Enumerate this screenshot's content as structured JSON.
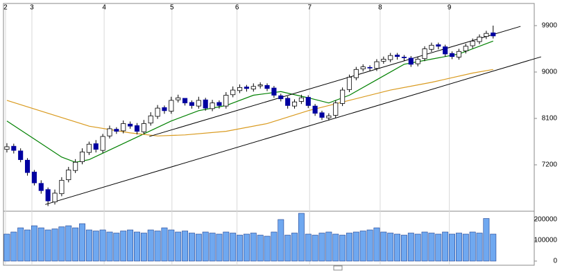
{
  "chart_data": {
    "type": "candlestick",
    "xlim": [
      -0.5,
      77
    ],
    "xticks": [
      {
        "value": -0.2,
        "label": "2"
      },
      {
        "value": 3.65,
        "label": "3"
      },
      {
        "value": 14.2,
        "label": "4"
      },
      {
        "value": 24.1,
        "label": "5"
      },
      {
        "value": 33.6,
        "label": "6"
      },
      {
        "value": 44.2,
        "label": "7"
      },
      {
        "value": 54.5,
        "label": "8"
      },
      {
        "value": 64.6,
        "label": "9"
      }
    ],
    "x_grid": true,
    "ylim": [
      6300,
      10330
    ],
    "yticks": [
      7200,
      8100,
      9000,
      9900
    ],
    "up_color": "#ffffff",
    "down_color": "#0000a0",
    "open": [
      7500,
      7560,
      7470,
      7290,
      7060,
      6840,
      6720,
      6480,
      6640,
      6910,
      7090,
      7260,
      7440,
      7610,
      7480,
      7760,
      7890,
      7860,
      7990,
      7960,
      7840,
      8010,
      8140,
      8310,
      8240,
      8460,
      8490,
      8410,
      8340,
      8460,
      8290,
      8410,
      8340,
      8560,
      8640,
      8710,
      8670,
      8730,
      8740,
      8690,
      8540,
      8490,
      8340,
      8430,
      8510,
      8340,
      8210,
      8110,
      8160,
      8390,
      8660,
      8890,
      9060,
      9090,
      9070,
      9210,
      9240,
      9330,
      9290,
      9270,
      9160,
      9260,
      9440,
      9530,
      9490,
      9360,
      9290,
      9410,
      9510,
      9590,
      9690,
      9760
    ],
    "high": [
      7620,
      7610,
      7520,
      7330,
      7100,
      6900,
      6760,
      6720,
      6960,
      7160,
      7310,
      7520,
      7650,
      7680,
      7800,
      7960,
      7930,
      8060,
      8040,
      8010,
      8070,
      8220,
      8360,
      8350,
      8520,
      8560,
      8470,
      8450,
      8520,
      8500,
      8460,
      8450,
      8610,
      8720,
      8760,
      8750,
      8780,
      8800,
      8780,
      8730,
      8580,
      8530,
      8470,
      8560,
      8550,
      8380,
      8250,
      8200,
      8450,
      8700,
      8950,
      9100,
      9150,
      9130,
      9250,
      9300,
      9370,
      9370,
      9330,
      9310,
      9300,
      9500,
      9570,
      9570,
      9530,
      9400,
      9450,
      9550,
      9650,
      9730,
      9800,
      9900
    ],
    "low": [
      7440,
      7420,
      7250,
      6990,
      6800,
      6640,
      6400,
      6430,
      6590,
      6860,
      7040,
      7210,
      7390,
      7440,
      7430,
      7710,
      7800,
      7810,
      7900,
      7790,
      7790,
      7960,
      8090,
      8190,
      8190,
      8410,
      8350,
      8290,
      8290,
      8250,
      8240,
      8290,
      8290,
      8510,
      8590,
      8620,
      8620,
      8680,
      8630,
      8500,
      8430,
      8290,
      8290,
      8380,
      8300,
      8150,
      8070,
      8060,
      8110,
      8340,
      8610,
      8840,
      9010,
      9020,
      9020,
      9160,
      9190,
      9240,
      9220,
      9100,
      9110,
      9210,
      9390,
      9440,
      9300,
      9250,
      9240,
      9360,
      9460,
      9540,
      9640,
      9650
    ],
    "close": [
      7550,
      7480,
      7300,
      7050,
      6850,
      6700,
      6500,
      6650,
      6900,
      7100,
      7250,
      7450,
      7600,
      7500,
      7750,
      7900,
      7850,
      8000,
      7950,
      7850,
      8000,
      8150,
      8300,
      8250,
      8450,
      8500,
      8400,
      8350,
      8450,
      8300,
      8400,
      8350,
      8550,
      8650,
      8700,
      8680,
      8720,
      8750,
      8680,
      8550,
      8480,
      8350,
      8420,
      8500,
      8350,
      8200,
      8120,
      8150,
      8400,
      8650,
      8900,
      9050,
      9100,
      9080,
      9200,
      9250,
      9320,
      9300,
      9280,
      9150,
      9250,
      9450,
      9520,
      9500,
      9350,
      9300,
      9400,
      9500,
      9600,
      9680,
      9750,
      9700
    ],
    "series": [
      {
        "color": "#008000",
        "x": [
          0,
          4,
          8,
          10,
          12,
          16,
          20,
          24,
          28,
          32,
          36,
          40,
          44,
          47,
          50,
          54,
          58,
          62,
          66,
          71
        ],
        "values": [
          8050,
          7700,
          7350,
          7250,
          7300,
          7550,
          7800,
          8050,
          8250,
          8350,
          8550,
          8620,
          8500,
          8400,
          8550,
          8850,
          9150,
          9250,
          9350,
          9600
        ]
      },
      {
        "color": "#d99a1e",
        "x": [
          0,
          6,
          12,
          18,
          22,
          26,
          32,
          38,
          44,
          50,
          56,
          62,
          68,
          71
        ],
        "values": [
          8450,
          8200,
          7950,
          7820,
          7760,
          7780,
          7850,
          8000,
          8250,
          8450,
          8650,
          8800,
          8980,
          9050
        ]
      }
    ],
    "trendlines": [
      {
        "color": "#000000",
        "x": [
          20.8,
          75
        ],
        "values": [
          7750,
          9886
        ]
      },
      {
        "color": "#000000",
        "x": [
          5.6,
          78
        ],
        "values": [
          6430,
          9295
        ]
      }
    ],
    "volume": {
      "color": "#6fa8f0",
      "ylim": [
        0,
        240000
      ],
      "yticks": [
        0,
        100000,
        200000
      ],
      "values": [
        130000,
        140000,
        160000,
        150000,
        170000,
        160000,
        150000,
        155000,
        165000,
        170000,
        160000,
        180000,
        150000,
        145000,
        150000,
        140000,
        135000,
        145000,
        150000,
        140000,
        135000,
        150000,
        145000,
        160000,
        150000,
        140000,
        145000,
        135000,
        130000,
        140000,
        135000,
        130000,
        140000,
        135000,
        125000,
        130000,
        135000,
        125000,
        120000,
        140000,
        200000,
        125000,
        135000,
        230000,
        130000,
        125000,
        135000,
        140000,
        130000,
        125000,
        135000,
        140000,
        145000,
        150000,
        160000,
        140000,
        135000,
        130000,
        125000,
        135000,
        130000,
        140000,
        135000,
        130000,
        140000,
        130000,
        135000,
        130000,
        140000,
        135000,
        205000,
        130000
      ]
    }
  }
}
